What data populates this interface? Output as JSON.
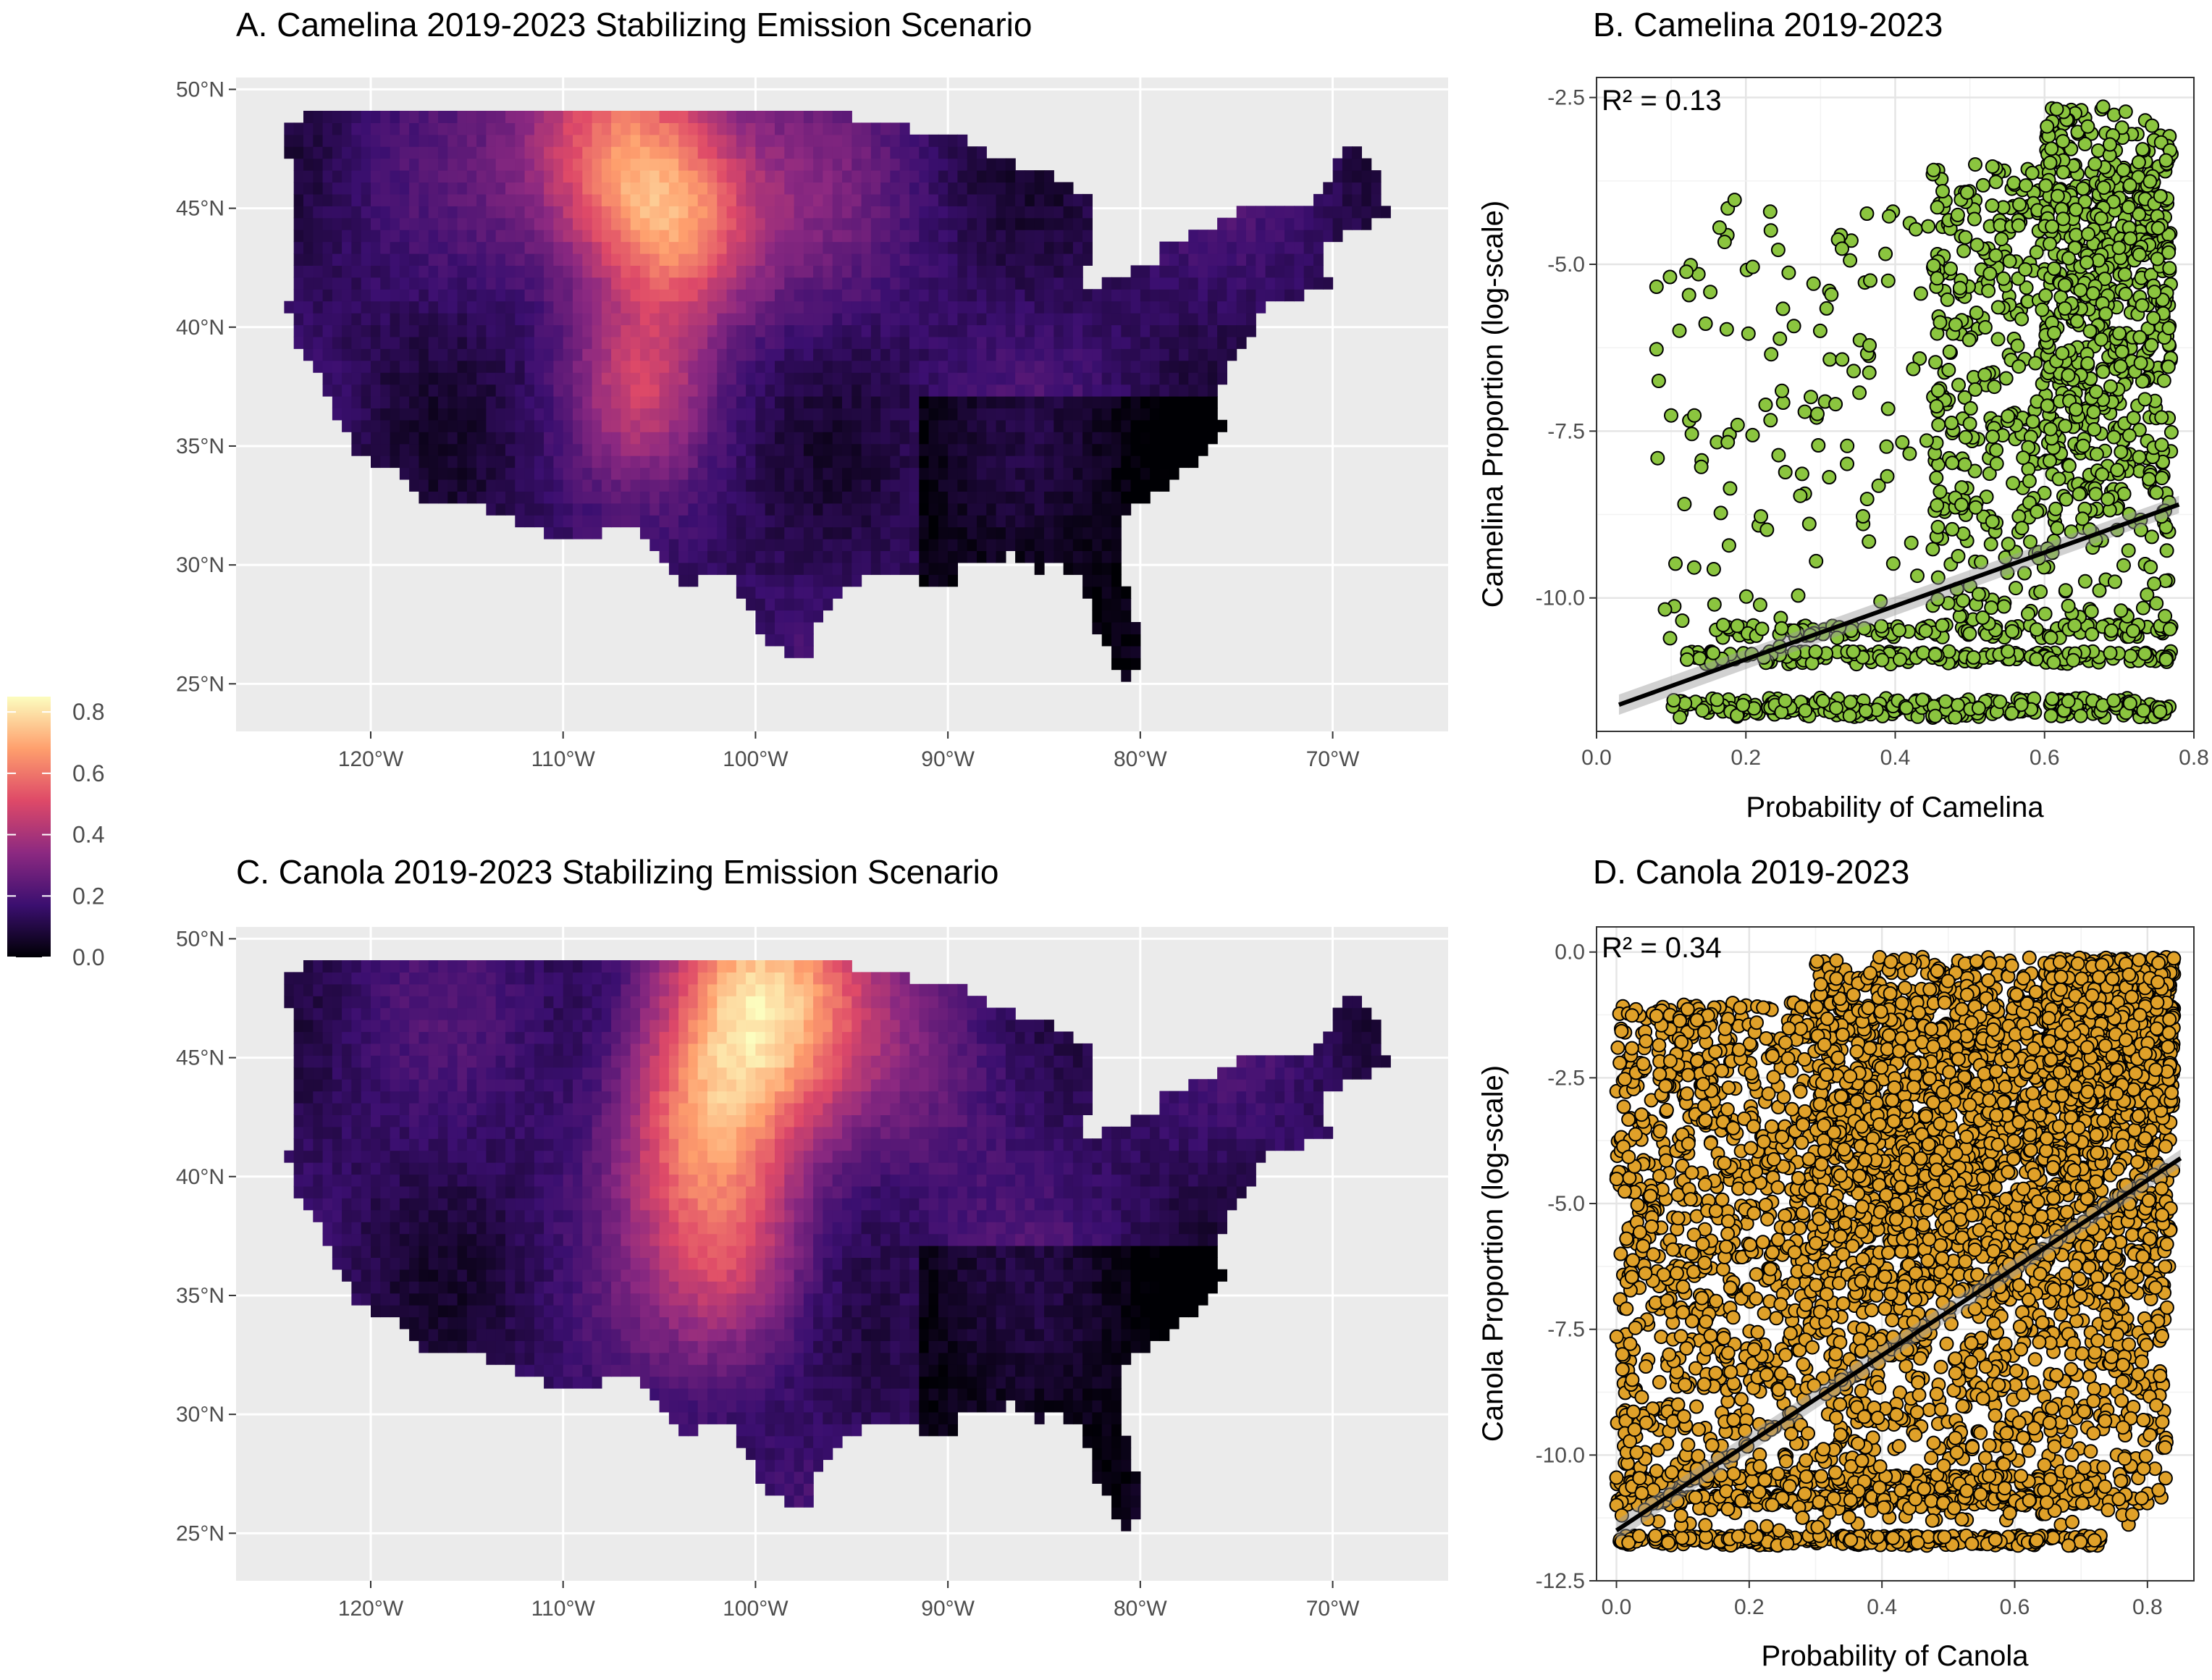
{
  "chart_data": [
    {
      "type": "heatmap",
      "panel": "A",
      "title": "A. Camelina 2019-2023 Stabilizing Emission Scenario",
      "x_ticks": [
        "120°W",
        "110°W",
        "100°W",
        "90°W",
        "80°W",
        "70°W"
      ],
      "x_tick_values": [
        -120,
        -110,
        -100,
        -90,
        -80,
        -70
      ],
      "y_ticks": [
        "50°N",
        "45°N",
        "40°N",
        "35°N",
        "30°N",
        "25°N"
      ],
      "y_tick_values": [
        50,
        45,
        40,
        35,
        30,
        25
      ],
      "xlim": [
        -127,
        -64
      ],
      "ylim": [
        23,
        50.5
      ],
      "hotspots": [
        {
          "lon": -107,
          "lat": 47.5,
          "r": 5,
          "v": 0.5
        },
        {
          "lon": -104,
          "lat": 44,
          "r": 4,
          "v": 0.35
        },
        {
          "lon": -106,
          "lat": 37.5,
          "r": 3.5,
          "v": 0.25
        },
        {
          "lon": -98,
          "lat": 45,
          "r": 6,
          "v": 0.1
        }
      ]
    },
    {
      "type": "scatter",
      "panel": "B",
      "title": "B. Camelina 2019-2023",
      "annotation": "R² = 0.13",
      "xlabel": "Probability of Camelina",
      "ylabel": "Camelina Proportion (log-scale)",
      "xlim": [
        0,
        0.8
      ],
      "ylim": [
        -12,
        -2.2
      ],
      "x_ticks": [
        "0.0",
        "0.2",
        "0.4",
        "0.6",
        "0.8"
      ],
      "x_tick_values": [
        0,
        0.2,
        0.4,
        0.6,
        0.8
      ],
      "y_ticks": [
        "-2.5",
        "-5.0",
        "-7.5",
        "-10.0"
      ],
      "y_tick_values": [
        -2.5,
        -5.0,
        -7.5,
        -10.0
      ],
      "point_color": "#8bc53f",
      "regression": {
        "x": [
          0.03,
          0.78
        ],
        "y": [
          -11.6,
          -8.6
        ]
      },
      "point_clusters": [
        {
          "xmin": 0.1,
          "xmax": 0.77,
          "ymin": -11.8,
          "ymax": -11.5
        },
        {
          "xmin": 0.12,
          "xmax": 0.77,
          "ymin": -11.0,
          "ymax": -10.8
        },
        {
          "xmin": 0.15,
          "xmax": 0.77,
          "ymin": -10.6,
          "ymax": -10.4
        },
        {
          "xmin": 0.45,
          "xmax": 0.77,
          "ymin": -10.5,
          "ymax": -3.5
        },
        {
          "xmin": 0.6,
          "xmax": 0.77,
          "ymin": -9.0,
          "ymax": -2.6
        },
        {
          "xmin": 0.08,
          "xmax": 0.5,
          "ymin": -11.0,
          "ymax": -4.0
        }
      ]
    },
    {
      "type": "heatmap",
      "panel": "C",
      "title": "C. Canola 2019-2023 Stabilizing Emission Scenario",
      "x_ticks": [
        "120°W",
        "110°W",
        "100°W",
        "90°W",
        "80°W",
        "70°W"
      ],
      "x_tick_values": [
        -120,
        -110,
        -100,
        -90,
        -80,
        -70
      ],
      "y_ticks": [
        "50°N",
        "45°N",
        "40°N",
        "35°N",
        "30°N",
        "25°N"
      ],
      "y_tick_values": [
        50,
        45,
        40,
        35,
        30,
        25
      ],
      "xlim": [
        -127,
        -64
      ],
      "ylim": [
        23,
        50.5
      ],
      "hotspots": [
        {
          "lon": -100,
          "lat": 47.5,
          "r": 5.5,
          "v": 0.6
        },
        {
          "lon": -103,
          "lat": 42,
          "r": 4.5,
          "v": 0.35
        },
        {
          "lon": -101,
          "lat": 36.5,
          "r": 4.5,
          "v": 0.3
        },
        {
          "lon": -90,
          "lat": 45,
          "r": 5,
          "v": 0.12
        }
      ]
    },
    {
      "type": "scatter",
      "panel": "D",
      "title": "D. Canola 2019-2023",
      "annotation": "R² = 0.34",
      "xlabel": "Probability of Canola",
      "ylabel": "Canola Proportion  (log-scale)",
      "xlim": [
        -0.03,
        0.87
      ],
      "ylim": [
        -12.5,
        0.5
      ],
      "x_ticks": [
        "0.0",
        "0.2",
        "0.4",
        "0.6",
        "0.8"
      ],
      "x_tick_values": [
        0,
        0.2,
        0.4,
        0.6,
        0.8
      ],
      "y_ticks": [
        "0.0",
        "-2.5",
        "-5.0",
        "-7.5",
        "-10.0",
        "-12.5"
      ],
      "y_tick_values": [
        0.0,
        -2.5,
        -5.0,
        -7.5,
        -10.0,
        -12.5
      ],
      "point_color": "#e0a129",
      "regression": {
        "x": [
          0.0,
          0.85
        ],
        "y": [
          -11.5,
          -4.1
        ]
      },
      "point_clusters": [
        {
          "xmin": 0.0,
          "xmax": 0.73,
          "ymin": -11.8,
          "ymax": -11.6
        },
        {
          "xmin": 0.0,
          "xmax": 0.73,
          "ymin": -11.0,
          "ymax": -10.8
        },
        {
          "xmin": 0.0,
          "xmax": 0.73,
          "ymin": -10.6,
          "ymax": -10.4
        },
        {
          "xmin": 0.0,
          "xmax": 0.83,
          "ymin": -11.5,
          "ymax": -1.0
        },
        {
          "xmin": 0.3,
          "xmax": 0.84,
          "ymin": -7.0,
          "ymax": -0.1
        },
        {
          "xmin": 0.65,
          "xmax": 0.84,
          "ymin": -3.0,
          "ymax": -0.1
        }
      ]
    }
  ],
  "legend": {
    "ticks": [
      "0.8",
      "0.6",
      "0.4",
      "0.2",
      "0.0"
    ],
    "tick_values": [
      0.8,
      0.6,
      0.4,
      0.2,
      0.0
    ],
    "range": [
      0,
      0.85
    ],
    "colors": [
      "#000004",
      "#3b0f70",
      "#8c2981",
      "#de4968",
      "#fe9f6d",
      "#fcfdbf"
    ]
  }
}
